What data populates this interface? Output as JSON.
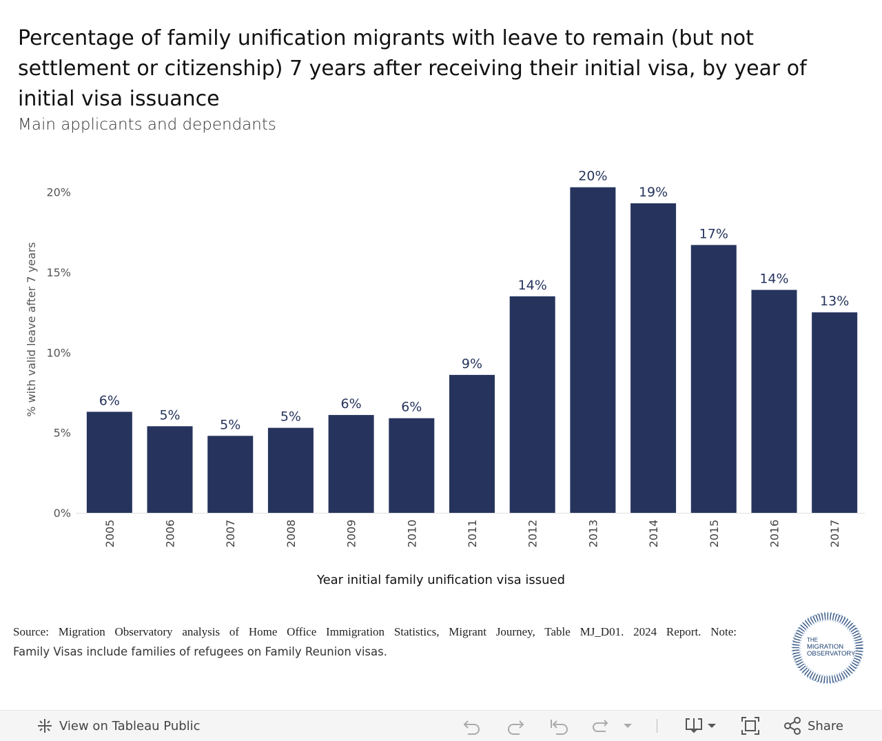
{
  "header": {
    "title": "Percentage of family unification migrants with leave to remain (but not settlement or citizenship) 7 years after receiving their initial visa, by year of initial visa issuance",
    "subtitle": "Main applicants and dependants"
  },
  "chart_data": {
    "type": "bar",
    "categories": [
      "2005",
      "2006",
      "2007",
      "2008",
      "2009",
      "2010",
      "2011",
      "2012",
      "2013",
      "2014",
      "2015",
      "2016",
      "2017"
    ],
    "values": [
      6.3,
      5.4,
      4.8,
      5.3,
      6.1,
      5.9,
      8.6,
      13.5,
      20.3,
      19.3,
      16.7,
      13.9,
      12.5
    ],
    "data_labels": [
      "6%",
      "5%",
      "5%",
      "5%",
      "6%",
      "6%",
      "9%",
      "14%",
      "20%",
      "19%",
      "17%",
      "14%",
      "13%"
    ],
    "ylim": [
      0,
      20.5
    ],
    "yticks": [
      0,
      5,
      10,
      15,
      20
    ],
    "ytick_labels": [
      "0%",
      "5%",
      "10%",
      "15%",
      "20%"
    ],
    "xlabel": "Year initial family unification visa issued",
    "ylabel": "% with valid leave after 7 years",
    "bar_color": "#26345d",
    "label_color": "#26345d"
  },
  "note": {
    "source": "Source: Migration Observatory analysis of Home Office Immigration Statistics, Migrant Journey, Table MJ_D01. 2024 Report. Note:",
    "family": "Family Visas include families of refugees on Family Reunion visas."
  },
  "logo": {
    "line1": "THE",
    "line2": "MIGRATION",
    "line3": "OBSERVATORY",
    "color": "#1c3f73"
  },
  "toolbar": {
    "view_label": "View on Tableau Public",
    "share_label": "Share",
    "icons": [
      "tableau-icon",
      "undo-icon",
      "redo-icon",
      "revert-icon",
      "refresh-icon",
      "dropdown-icon",
      "download-icon",
      "fullscreen-icon",
      "share-icon"
    ]
  }
}
